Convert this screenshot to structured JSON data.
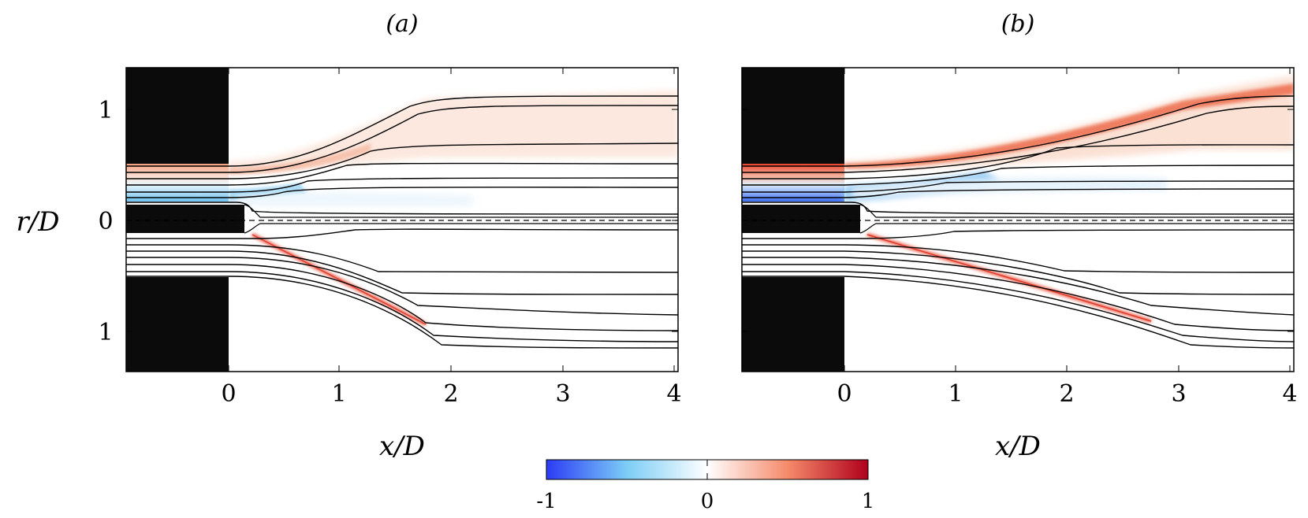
{
  "panels": [
    {
      "id": "a",
      "label": "(a)",
      "x_ticks": [
        "0",
        "1",
        "2",
        "3",
        "4"
      ],
      "y_ticks": [
        "1",
        "0",
        "1"
      ],
      "xlabel": "x/D",
      "ylabel": "r/D",
      "show_ylabel": true
    },
    {
      "id": "b",
      "label": "(b)",
      "x_ticks": [
        "0",
        "1",
        "2",
        "3",
        "4"
      ],
      "y_ticks": [],
      "xlabel": "x/D",
      "ylabel": "",
      "show_ylabel": false
    }
  ],
  "colorbar": {
    "ticks": [
      "-1",
      "0",
      "1"
    ],
    "min": -1,
    "max": 1,
    "colors": [
      "#2b3bf5",
      "#7ccdf6",
      "#ffffff",
      "#f58a6a",
      "#b0001c"
    ]
  },
  "chart_data": [
    {
      "type": "heatmap",
      "title": "(a)",
      "xlabel": "x/D",
      "ylabel": "r/D",
      "xlim": [
        -0.9,
        4.0
      ],
      "x_ticks": [
        0,
        1,
        2,
        3,
        4
      ],
      "y_ticks": [
        1,
        0,
        -1
      ],
      "colorbar_range": [
        -1,
        1
      ],
      "jet_shear_layer_end_x": 1.8
    },
    {
      "type": "heatmap",
      "title": "(b)",
      "xlabel": "x/D",
      "ylabel": "",
      "xlim": [
        -0.9,
        4.0
      ],
      "x_ticks": [
        0,
        1,
        2,
        3,
        4
      ],
      "colorbar_range": [
        -1,
        1
      ],
      "jet_shear_layer_end_x": 2.8
    }
  ]
}
